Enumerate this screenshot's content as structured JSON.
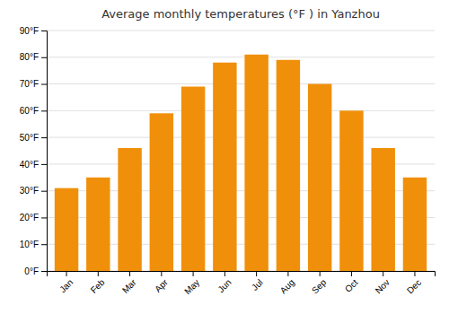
{
  "chart_data": {
    "type": "bar",
    "title": "Average monthly temperatures (°F ) in Yanzhou",
    "categories": [
      "Jan",
      "Feb",
      "Mar",
      "Apr",
      "May",
      "Jun",
      "Jul",
      "Aug",
      "Sep",
      "Oct",
      "Nov",
      "Dec"
    ],
    "values": [
      31,
      35,
      46,
      59,
      69,
      78,
      81,
      79,
      70,
      60,
      46,
      35
    ],
    "color": "#F0900A",
    "ylim": [
      0,
      90
    ],
    "yticks": [
      {
        "value": 0,
        "label": "0°F"
      },
      {
        "value": 10,
        "label": "10°F"
      },
      {
        "value": 20,
        "label": "20°F"
      },
      {
        "value": 30,
        "label": "30°F"
      },
      {
        "value": 40,
        "label": "40°F"
      },
      {
        "value": 50,
        "label": "50°F"
      },
      {
        "value": 60,
        "label": "60°F"
      },
      {
        "value": 70,
        "label": "70°F"
      },
      {
        "value": 80,
        "label": "80°F"
      },
      {
        "value": 90,
        "label": "90°F"
      }
    ],
    "grid": true
  }
}
